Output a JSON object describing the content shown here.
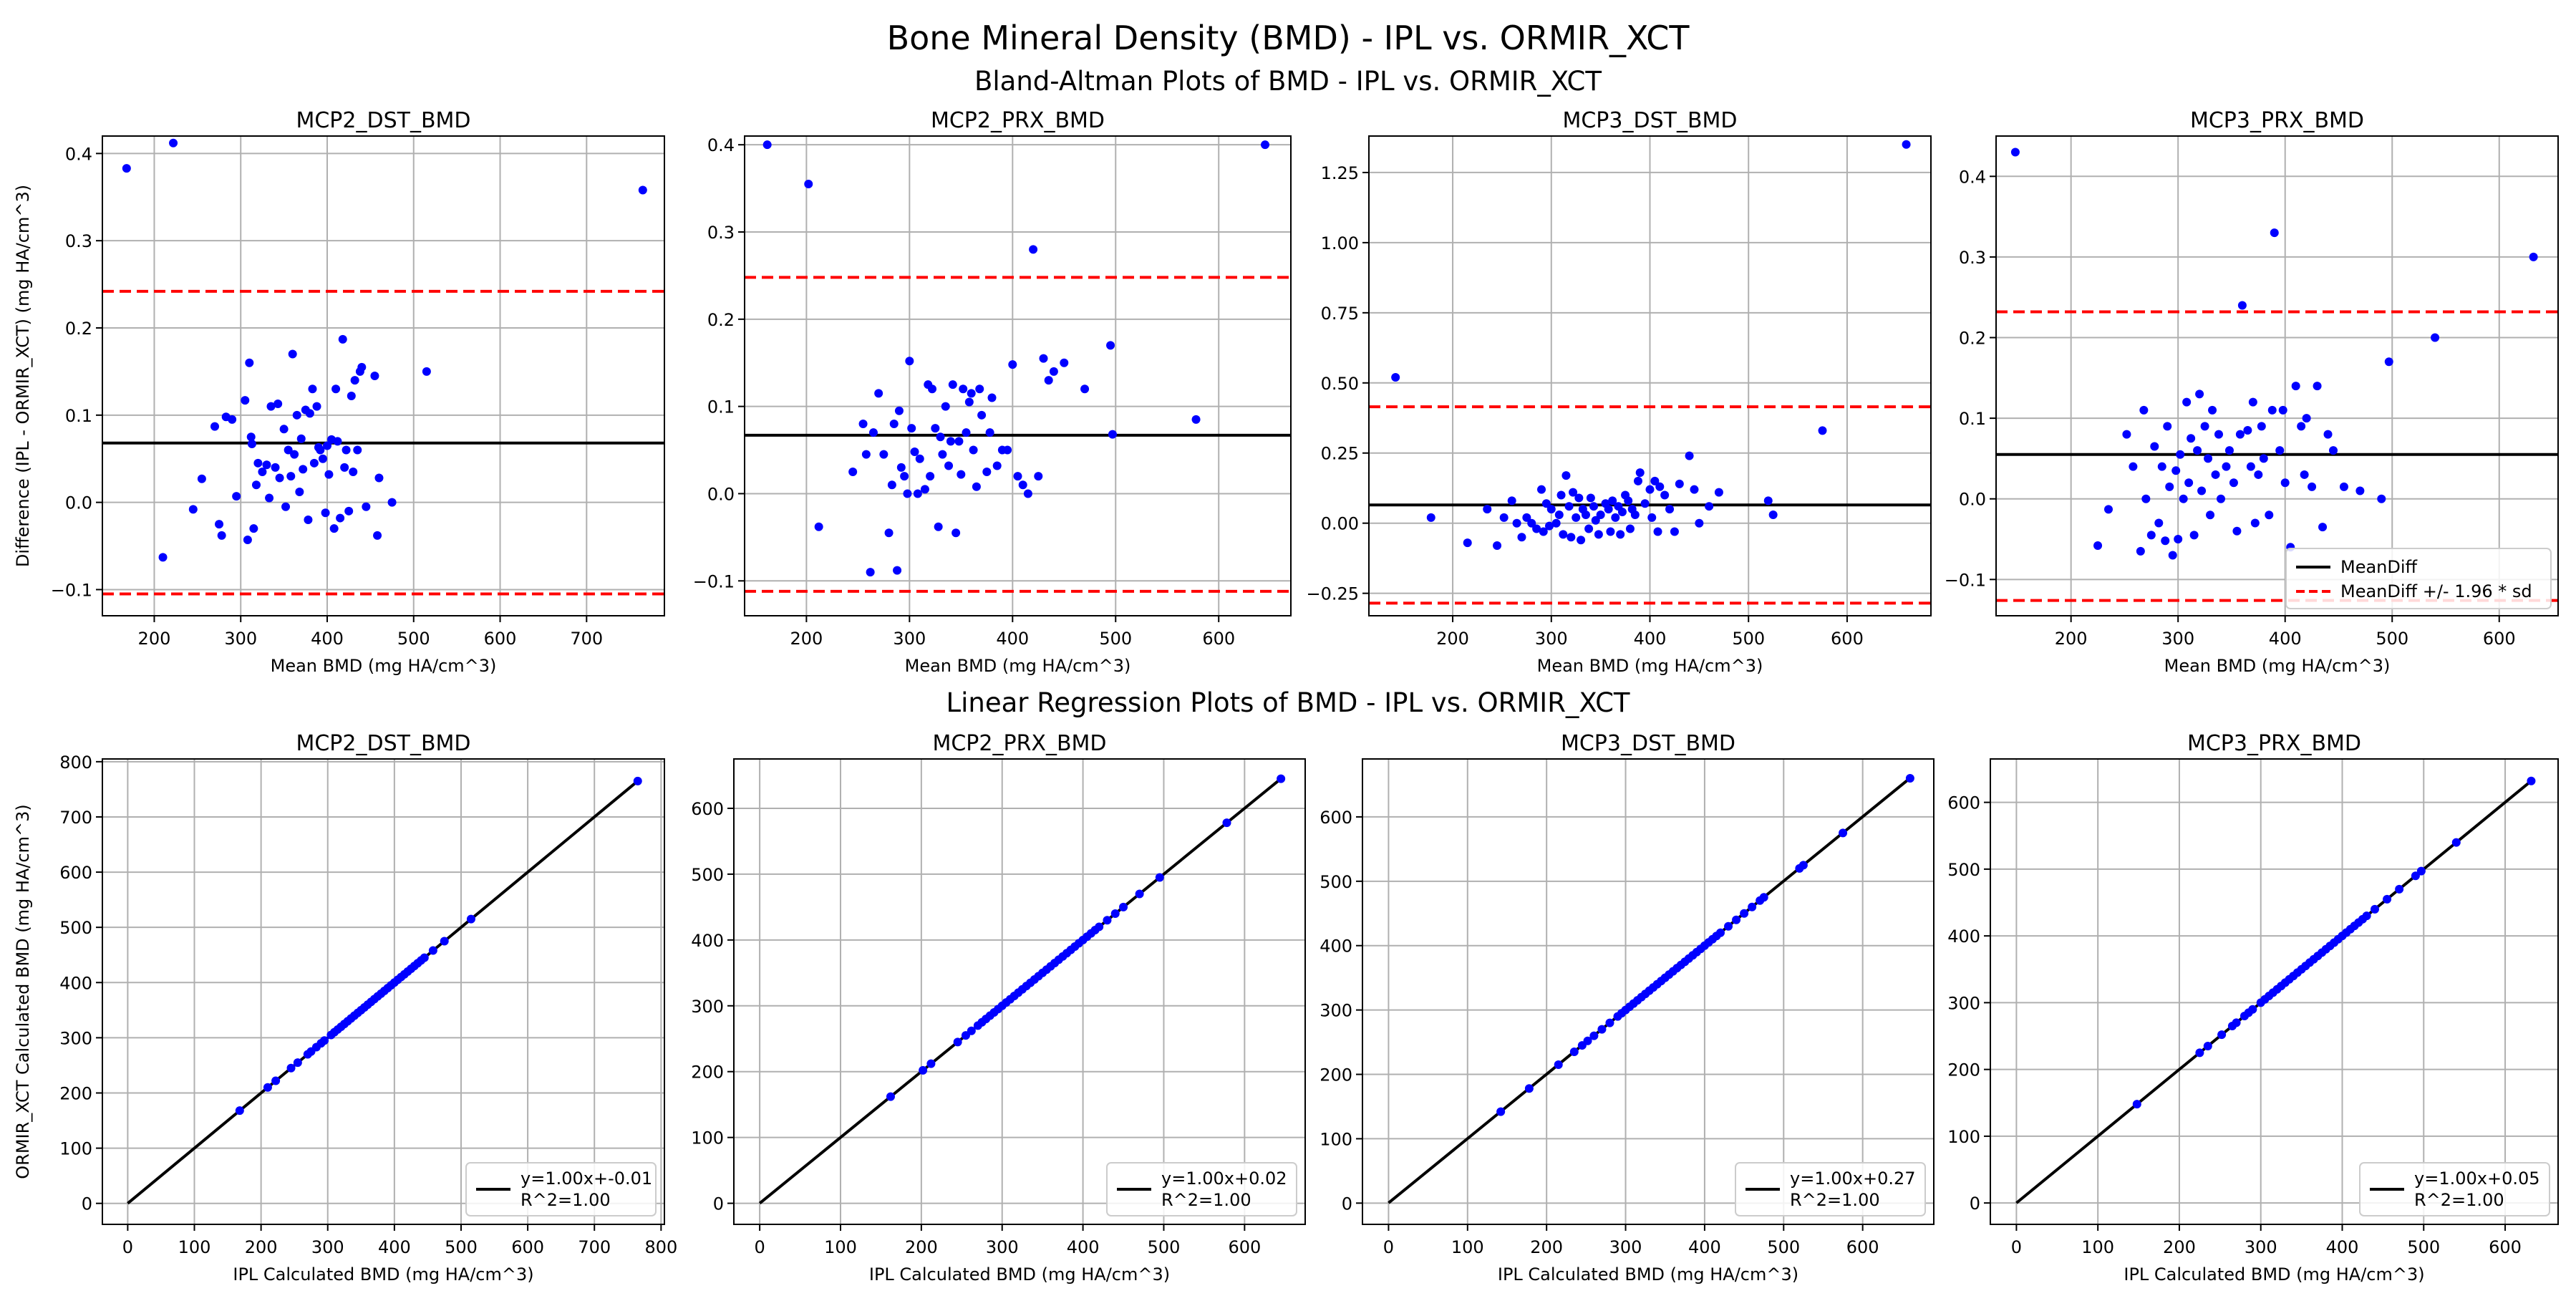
{
  "figure": {
    "title": "Bone Mineral Density (BMD) - IPL vs. ORMIR_XCT",
    "ba_subtitle": "Bland-Altman Plots of BMD - IPL vs. ORMIR_XCT",
    "lr_subtitle": "Linear Regression Plots of BMD - IPL vs. ORMIR_XCT"
  },
  "colors": {
    "points": "#0000ff",
    "mean_line": "#000000",
    "limits": "#ff0000",
    "grid": "#b0b0b0"
  },
  "chart_data": [
    {
      "type": "scatter",
      "title": "MCP2_DST_BMD",
      "xlabel": "Mean BMD (mg HA/cm^3)",
      "ylabel": "Difference (IPL - ORMIR_XCT) (mg HA/cm^3)",
      "xlim": [
        140,
        790
      ],
      "ylim": [
        -0.13,
        0.42
      ],
      "xticks": [
        200,
        300,
        400,
        500,
        600,
        700
      ],
      "yticks": [
        -0.1,
        0.0,
        0.1,
        0.2,
        0.3,
        0.4
      ],
      "mean_diff": 0.068,
      "upper_limit": 0.242,
      "lower_limit": -0.105,
      "x": [
        168,
        222,
        765,
        210,
        245,
        255,
        270,
        275,
        278,
        283,
        290,
        295,
        305,
        308,
        310,
        312,
        313,
        315,
        318,
        320,
        325,
        330,
        333,
        335,
        340,
        343,
        345,
        350,
        352,
        355,
        358,
        360,
        362,
        365,
        368,
        370,
        372,
        375,
        378,
        380,
        383,
        385,
        388,
        390,
        392,
        395,
        398,
        400,
        402,
        405,
        408,
        410,
        412,
        415,
        418,
        420,
        422,
        425,
        428,
        430,
        432,
        435,
        438,
        440,
        445,
        455,
        458,
        460,
        475,
        515
      ],
      "y": [
        0.383,
        0.412,
        0.358,
        -0.063,
        -0.008,
        0.027,
        0.087,
        -0.025,
        -0.038,
        0.098,
        0.095,
        0.007,
        0.117,
        -0.043,
        0.16,
        0.075,
        0.067,
        -0.03,
        0.02,
        0.045,
        0.035,
        0.043,
        0.005,
        0.11,
        0.04,
        0.113,
        0.028,
        0.084,
        -0.005,
        0.06,
        0.03,
        0.17,
        0.055,
        0.1,
        0.012,
        0.073,
        0.038,
        0.106,
        -0.02,
        0.102,
        0.13,
        0.045,
        0.11,
        0.063,
        0.06,
        0.05,
        -0.012,
        0.065,
        0.032,
        0.072,
        -0.03,
        0.13,
        0.07,
        -0.018,
        0.187,
        0.04,
        0.06,
        -0.01,
        0.122,
        0.035,
        0.14,
        0.06,
        0.15,
        0.155,
        -0.005,
        0.145,
        -0.038,
        0.028,
        0.0,
        0.15
      ]
    },
    {
      "type": "scatter",
      "title": "MCP2_PRX_BMD",
      "xlabel": "Mean BMD (mg HA/cm^3)",
      "ylabel": "",
      "xlim": [
        140,
        670
      ],
      "ylim": [
        -0.14,
        0.41
      ],
      "xticks": [
        200,
        300,
        400,
        500,
        600
      ],
      "yticks": [
        -0.1,
        0.0,
        0.1,
        0.2,
        0.3,
        0.4
      ],
      "mean_diff": 0.067,
      "upper_limit": 0.248,
      "lower_limit": -0.112,
      "x": [
        162,
        202,
        645,
        212,
        245,
        255,
        258,
        262,
        265,
        270,
        275,
        280,
        283,
        285,
        288,
        290,
        292,
        295,
        298,
        300,
        302,
        305,
        308,
        310,
        315,
        318,
        320,
        322,
        325,
        328,
        330,
        332,
        335,
        338,
        340,
        342,
        345,
        348,
        350,
        352,
        355,
        358,
        360,
        362,
        365,
        368,
        370,
        375,
        378,
        380,
        385,
        390,
        395,
        400,
        405,
        410,
        415,
        420,
        425,
        430,
        435,
        440,
        450,
        470,
        495,
        497,
        578
      ],
      "y": [
        0.4,
        0.355,
        0.4,
        -0.038,
        0.025,
        0.08,
        0.045,
        -0.09,
        0.07,
        0.115,
        0.045,
        -0.045,
        0.01,
        0.08,
        -0.088,
        0.095,
        0.03,
        0.02,
        0.0,
        0.152,
        0.075,
        0.048,
        0.0,
        0.04,
        0.005,
        0.125,
        0.02,
        0.12,
        0.075,
        -0.038,
        0.065,
        0.045,
        0.1,
        0.032,
        0.06,
        0.125,
        -0.045,
        0.06,
        0.022,
        0.12,
        0.07,
        0.105,
        0.115,
        0.05,
        0.008,
        0.12,
        0.09,
        0.025,
        0.07,
        0.11,
        0.032,
        0.05,
        0.05,
        0.148,
        0.02,
        0.01,
        0.0,
        0.28,
        0.02,
        0.155,
        0.13,
        0.14,
        0.15,
        0.12,
        0.17,
        0.068,
        0.085
      ]
    },
    {
      "type": "scatter",
      "title": "MCP3_DST_BMD",
      "xlabel": "Mean BMD (mg HA/cm^3)",
      "ylabel": "",
      "xlim": [
        115,
        685
      ],
      "ylim": [
        -0.33,
        1.38
      ],
      "xticks": [
        200,
        300,
        400,
        500,
        600
      ],
      "yticks": [
        -0.25,
        0.0,
        0.25,
        0.5,
        0.75,
        1.0,
        1.25
      ],
      "mean_diff": 0.065,
      "upper_limit": 0.415,
      "lower_limit": -0.285,
      "x": [
        142,
        178,
        215,
        235,
        245,
        252,
        260,
        265,
        270,
        275,
        280,
        285,
        290,
        292,
        295,
        298,
        300,
        305,
        308,
        310,
        312,
        315,
        318,
        320,
        322,
        325,
        328,
        330,
        332,
        335,
        338,
        340,
        343,
        345,
        348,
        350,
        355,
        358,
        360,
        362,
        365,
        368,
        370,
        372,
        375,
        378,
        380,
        382,
        385,
        388,
        390,
        395,
        400,
        402,
        405,
        408,
        410,
        415,
        420,
        425,
        430,
        440,
        445,
        450,
        460,
        470,
        520,
        525,
        575,
        660
      ],
      "y": [
        0.52,
        0.02,
        -0.07,
        0.05,
        -0.08,
        0.02,
        0.08,
        0.0,
        -0.05,
        0.02,
        0.0,
        -0.02,
        0.12,
        -0.03,
        0.07,
        -0.01,
        0.05,
        0.0,
        0.03,
        0.1,
        -0.04,
        0.17,
        0.06,
        -0.05,
        0.11,
        0.02,
        0.09,
        -0.06,
        0.05,
        0.03,
        -0.02,
        0.09,
        0.06,
        0.01,
        -0.04,
        0.03,
        0.07,
        0.05,
        -0.03,
        0.08,
        0.02,
        0.06,
        -0.04,
        0.04,
        0.1,
        0.08,
        -0.02,
        0.05,
        0.03,
        0.15,
        0.18,
        0.07,
        0.12,
        0.02,
        0.15,
        -0.03,
        0.13,
        0.1,
        0.05,
        -0.03,
        0.14,
        0.24,
        0.12,
        0.0,
        0.06,
        0.11,
        0.08,
        0.03,
        0.33,
        1.35
      ]
    },
    {
      "type": "scatter",
      "title": "MCP3_PRX_BMD",
      "xlabel": "Mean BMD (mg HA/cm^3)",
      "ylabel": "",
      "xlim": [
        130,
        655
      ],
      "ylim": [
        -0.145,
        0.45
      ],
      "xticks": [
        200,
        300,
        400,
        500,
        600
      ],
      "yticks": [
        -0.1,
        0.0,
        0.1,
        0.2,
        0.3,
        0.4
      ],
      "mean_diff": 0.055,
      "upper_limit": 0.232,
      "lower_limit": -0.126,
      "legend": [
        "MeanDiff",
        "MeanDiff +/- 1.96 * sd"
      ],
      "legend_loc": "lower right",
      "x": [
        148,
        225,
        235,
        252,
        258,
        265,
        268,
        270,
        275,
        278,
        282,
        285,
        288,
        290,
        292,
        295,
        298,
        300,
        302,
        305,
        308,
        310,
        312,
        315,
        318,
        320,
        322,
        325,
        328,
        330,
        332,
        335,
        338,
        340,
        345,
        348,
        352,
        355,
        358,
        360,
        365,
        368,
        370,
        372,
        375,
        378,
        380,
        385,
        388,
        390,
        395,
        398,
        400,
        405,
        410,
        415,
        418,
        420,
        425,
        430,
        435,
        440,
        445,
        455,
        470,
        490,
        497,
        540,
        632
      ],
      "y": [
        0.43,
        -0.058,
        -0.013,
        0.08,
        0.04,
        -0.065,
        0.11,
        0.0,
        -0.045,
        0.065,
        -0.03,
        0.04,
        -0.052,
        0.09,
        0.015,
        -0.07,
        0.035,
        -0.05,
        0.055,
        0.0,
        0.12,
        0.02,
        0.075,
        -0.045,
        0.06,
        0.13,
        0.01,
        0.09,
        0.05,
        -0.02,
        0.11,
        0.03,
        0.08,
        0.0,
        0.04,
        0.06,
        0.02,
        -0.04,
        0.08,
        0.24,
        0.085,
        0.04,
        0.12,
        -0.03,
        0.03,
        0.09,
        0.05,
        -0.02,
        0.11,
        0.33,
        0.06,
        0.11,
        0.02,
        -0.06,
        0.14,
        0.09,
        0.03,
        0.1,
        0.015,
        0.14,
        -0.035,
        0.08,
        0.06,
        0.015,
        0.01,
        0.0,
        0.17,
        0.2,
        0.3
      ]
    },
    {
      "type": "scatter",
      "title": "MCP2_DST_BMD",
      "xlabel": "IPL Calculated BMD (mg HA/cm^3)",
      "ylabel": "ORMIR_XCT Calculated BMD (mg HA/cm^3)",
      "xlim": [
        -38,
        805
      ],
      "ylim": [
        -38,
        805
      ],
      "xticks": [
        0,
        100,
        200,
        300,
        400,
        500,
        600,
        700,
        800
      ],
      "yticks": [
        0,
        100,
        200,
        300,
        400,
        500,
        600,
        700,
        800
      ],
      "fit": {
        "slope": 1.0,
        "intercept": -0.01,
        "x_range": [
          0,
          765
        ]
      },
      "legend": [
        "y=1.00x+-0.01\nR^2=1.00"
      ],
      "legend_loc": "lower right",
      "x": [
        168,
        210,
        222,
        245,
        255,
        270,
        275,
        283,
        290,
        295,
        305,
        310,
        315,
        320,
        325,
        330,
        335,
        340,
        345,
        350,
        355,
        360,
        365,
        370,
        375,
        380,
        385,
        390,
        395,
        400,
        405,
        410,
        415,
        420,
        425,
        430,
        435,
        440,
        445,
        458,
        475,
        515,
        765
      ],
      "y": [
        168,
        210,
        222,
        245,
        255,
        270,
        275,
        283,
        290,
        295,
        305,
        310,
        315,
        320,
        325,
        330,
        335,
        340,
        345,
        350,
        355,
        360,
        365,
        370,
        375,
        380,
        385,
        390,
        395,
        400,
        405,
        410,
        415,
        420,
        425,
        430,
        435,
        440,
        445,
        458,
        475,
        515,
        765
      ]
    },
    {
      "type": "scatter",
      "title": "MCP2_PRX_BMD",
      "xlabel": "IPL Calculated BMD (mg HA/cm^3)",
      "ylabel": "",
      "xlim": [
        -32,
        675
      ],
      "ylim": [
        -32,
        675
      ],
      "xticks": [
        0,
        100,
        200,
        300,
        400,
        500,
        600
      ],
      "yticks": [
        0,
        100,
        200,
        300,
        400,
        500,
        600
      ],
      "fit": {
        "slope": 1.0,
        "intercept": 0.02,
        "x_range": [
          0,
          645
        ]
      },
      "legend": [
        "y=1.00x+0.02\nR^2=1.00"
      ],
      "legend_loc": "lower right",
      "x": [
        162,
        202,
        212,
        245,
        255,
        262,
        270,
        275,
        280,
        285,
        290,
        295,
        300,
        305,
        310,
        315,
        320,
        325,
        330,
        335,
        340,
        345,
        350,
        355,
        360,
        365,
        370,
        375,
        380,
        385,
        390,
        395,
        400,
        405,
        410,
        415,
        420,
        430,
        440,
        450,
        470,
        495,
        578,
        645
      ],
      "y": [
        162,
        202,
        212,
        245,
        255,
        262,
        270,
        275,
        280,
        285,
        290,
        295,
        300,
        305,
        310,
        315,
        320,
        325,
        330,
        335,
        340,
        345,
        350,
        355,
        360,
        365,
        370,
        375,
        380,
        385,
        390,
        395,
        400,
        405,
        410,
        415,
        420,
        430,
        440,
        450,
        470,
        495,
        578,
        645
      ]
    },
    {
      "type": "scatter",
      "title": "MCP3_DST_BMD",
      "xlabel": "IPL Calculated BMD (mg HA/cm^3)",
      "ylabel": "",
      "xlim": [
        -33,
        690
      ],
      "ylim": [
        -33,
        690
      ],
      "xticks": [
        0,
        100,
        200,
        300,
        400,
        500,
        600
      ],
      "yticks": [
        0,
        100,
        200,
        300,
        400,
        500,
        600
      ],
      "fit": {
        "slope": 1.0,
        "intercept": 0.27,
        "x_range": [
          0,
          660
        ]
      },
      "legend": [
        "y=1.00x+0.27\nR^2=1.00"
      ],
      "legend_loc": "lower right",
      "x": [
        142,
        178,
        215,
        235,
        245,
        252,
        260,
        270,
        280,
        290,
        295,
        300,
        305,
        310,
        315,
        320,
        325,
        330,
        335,
        340,
        345,
        350,
        355,
        360,
        365,
        370,
        375,
        380,
        385,
        390,
        395,
        400,
        405,
        410,
        415,
        420,
        430,
        440,
        450,
        460,
        470,
        475,
        520,
        525,
        575,
        660
      ],
      "y": [
        142,
        178,
        215,
        235,
        245,
        252,
        260,
        270,
        280,
        290,
        295,
        300,
        305,
        310,
        315,
        320,
        325,
        330,
        335,
        340,
        345,
        350,
        355,
        360,
        365,
        370,
        375,
        380,
        385,
        390,
        395,
        400,
        405,
        410,
        415,
        420,
        430,
        440,
        450,
        460,
        470,
        475,
        520,
        525,
        575,
        660
      ]
    },
    {
      "type": "scatter",
      "title": "MCP3_PRX_BMD",
      "xlabel": "IPL Calculated BMD (mg HA/cm^3)",
      "ylabel": "",
      "xlim": [
        -32,
        665
      ],
      "ylim": [
        -32,
        665
      ],
      "xticks": [
        0,
        100,
        200,
        300,
        400,
        500,
        600
      ],
      "yticks": [
        0,
        100,
        200,
        300,
        400,
        500,
        600
      ],
      "fit": {
        "slope": 1.0,
        "intercept": 0.05,
        "x_range": [
          0,
          632
        ]
      },
      "legend": [
        "y=1.00x+0.05\nR^2=1.00"
      ],
      "legend_loc": "lower right",
      "x": [
        148,
        225,
        235,
        252,
        265,
        270,
        280,
        285,
        290,
        300,
        305,
        310,
        315,
        320,
        325,
        330,
        335,
        340,
        345,
        350,
        355,
        360,
        365,
        370,
        375,
        380,
        385,
        390,
        395,
        400,
        405,
        410,
        415,
        420,
        425,
        430,
        440,
        455,
        470,
        490,
        497,
        540,
        632
      ],
      "y": [
        148,
        225,
        235,
        252,
        265,
        270,
        280,
        285,
        290,
        300,
        305,
        310,
        315,
        320,
        325,
        330,
        335,
        340,
        345,
        350,
        355,
        360,
        365,
        370,
        375,
        380,
        385,
        390,
        395,
        400,
        405,
        410,
        415,
        420,
        425,
        430,
        440,
        455,
        470,
        490,
        497,
        540,
        632
      ]
    }
  ]
}
